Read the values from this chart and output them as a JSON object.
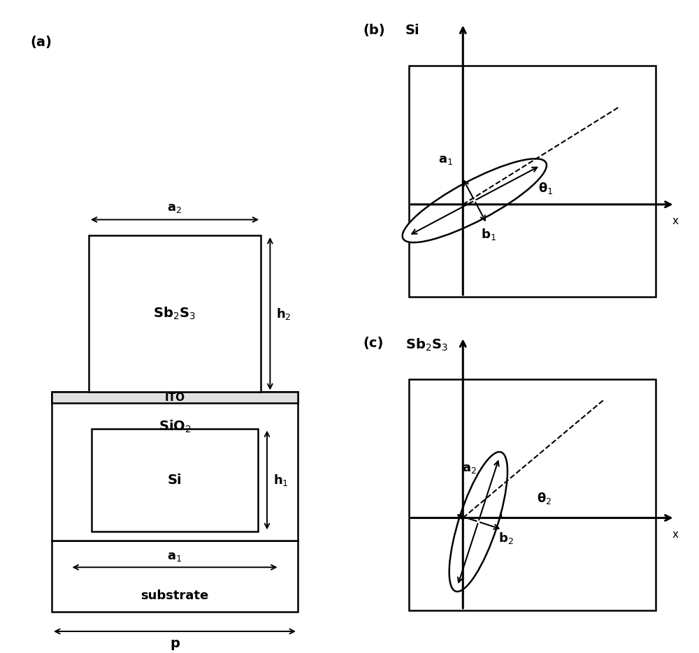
{
  "bg_color": "#ffffff",
  "line_color": "#000000",
  "fig_width": 10.0,
  "fig_height": 9.35,
  "panel_a_label": "(a)",
  "panel_b_label": "(b)",
  "panel_c_label": "(c)",
  "sb2s3_label": "Sb$_2$S$_3$",
  "sio2_label": "SiO$_2$",
  "si_label": "Si",
  "ito_label": "ITO",
  "substrate_label": "substrate",
  "h1_label": "h$_1$",
  "h2_label": "h$_2$",
  "a1_label": "a$_1$",
  "a2_label": "a$_2$",
  "p_label": "p",
  "theta1_label": "θ$_1$",
  "theta2_label": "θ$_2$",
  "b1_label": "b$_1$",
  "b2_label": "b$_2$",
  "si_b_label": "Si",
  "sb2s3_c_label": "Sb$_2$S$_3$",
  "x_label": "x"
}
